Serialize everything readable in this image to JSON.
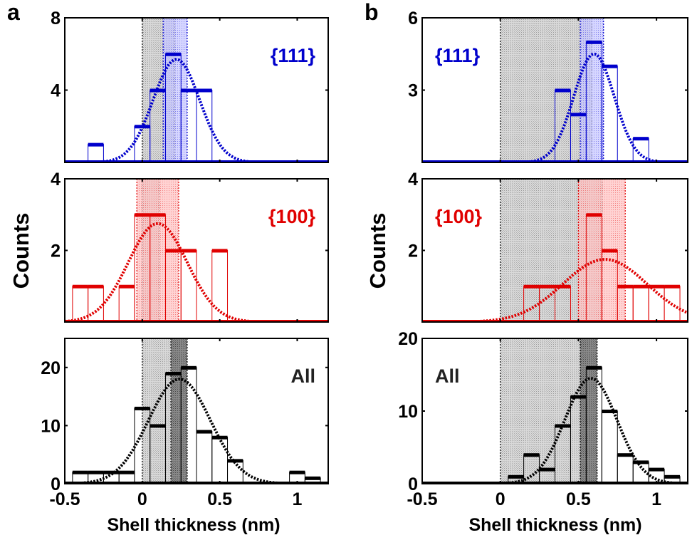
{
  "figure": {
    "ylabel": "Counts",
    "xlabel": "Shell thickness (nm)"
  },
  "colors": {
    "blue": "#0000cc",
    "red": "#e00000",
    "black": "#000000",
    "gray_band": "#bdbdbd",
    "dark_band": "#6e6e6e",
    "blue_band": "#8c8cff",
    "red_band": "#ff8c8c"
  },
  "chart_data": [
    {
      "type": "bar",
      "panel": "a",
      "facet": "{111}",
      "color": "blue",
      "label_position": "top-right",
      "xlim": [
        -0.5,
        1.2
      ],
      "ylim": [
        0,
        8
      ],
      "yticks": [
        4,
        8
      ],
      "xticks": [],
      "bin_width": 0.1,
      "bin_centers": [
        -0.3,
        0.0,
        0.1,
        0.2,
        0.3,
        0.4
      ],
      "values": [
        1,
        2,
        4,
        6,
        4,
        4
      ],
      "fit": {
        "type": "gaussian",
        "amplitude": 5.7,
        "mean": 0.22,
        "sigma": 0.15
      },
      "bands": [
        {
          "kind": "gray",
          "from": 0.0,
          "to": 0.21
        },
        {
          "kind": "blue",
          "from": 0.135,
          "to": 0.29
        }
      ]
    },
    {
      "type": "bar",
      "panel": "a",
      "facet": "{100}",
      "color": "red",
      "label_position": "top-right",
      "xlim": [
        -0.5,
        1.2
      ],
      "ylim": [
        0,
        4
      ],
      "yticks": [
        2,
        4
      ],
      "xticks": [],
      "bin_width": 0.1,
      "bin_centers": [
        -0.4,
        -0.3,
        -0.1,
        0.0,
        0.1,
        0.2,
        0.3,
        0.5
      ],
      "values": [
        1,
        1,
        1,
        3,
        3,
        2,
        2,
        2
      ],
      "fit": {
        "type": "gaussian",
        "amplitude": 2.75,
        "mean": 0.1,
        "sigma": 0.19
      },
      "bands": [
        {
          "kind": "gray",
          "from": 0.0,
          "to": 0.11
        },
        {
          "kind": "red",
          "from": -0.035,
          "to": 0.235
        }
      ]
    },
    {
      "type": "bar",
      "panel": "a",
      "facet": "All",
      "color": "black",
      "label_position": "top-right",
      "xlim": [
        -0.5,
        1.2
      ],
      "ylim": [
        0,
        25
      ],
      "yticks": [
        0,
        10,
        20
      ],
      "xticks": [
        -0.5,
        0,
        0.5,
        1
      ],
      "xtick_labels": [
        "-0.5",
        "0",
        "0.5",
        "1"
      ],
      "bin_width": 0.1,
      "bin_centers": [
        -0.4,
        -0.3,
        -0.2,
        -0.1,
        0.0,
        0.1,
        0.2,
        0.3,
        0.4,
        0.5,
        0.6,
        1.0,
        1.1
      ],
      "values": [
        2,
        2,
        2,
        2,
        13,
        10,
        19,
        20,
        9,
        8,
        4,
        2,
        1
      ],
      "fit": {
        "type": "gaussian",
        "amplitude": 18,
        "mean": 0.24,
        "sigma": 0.2
      },
      "bands": [
        {
          "kind": "gray",
          "from": 0.0,
          "to": 0.245
        },
        {
          "kind": "dark",
          "from": 0.185,
          "to": 0.29
        }
      ]
    },
    {
      "type": "bar",
      "panel": "b",
      "facet": "{111}",
      "color": "blue",
      "label_position": "top-left",
      "xlim": [
        -0.5,
        1.2
      ],
      "ylim": [
        0,
        6
      ],
      "yticks": [
        3,
        6
      ],
      "xticks": [],
      "bin_width": 0.1,
      "bin_centers": [
        0.4,
        0.5,
        0.6,
        0.7,
        0.9
      ],
      "values": [
        3,
        2,
        5,
        4,
        1
      ],
      "fit": {
        "type": "gaussian",
        "amplitude": 4.5,
        "mean": 0.6,
        "sigma": 0.13
      },
      "bands": [
        {
          "kind": "gray",
          "from": 0.0,
          "to": 0.586
        },
        {
          "kind": "blue",
          "from": 0.512,
          "to": 0.661
        }
      ]
    },
    {
      "type": "bar",
      "panel": "b",
      "facet": "{100}",
      "color": "red",
      "label_position": "top-left",
      "xlim": [
        -0.5,
        1.2
      ],
      "ylim": [
        0,
        4
      ],
      "yticks": [
        2,
        4
      ],
      "xticks": [],
      "bin_width": 0.1,
      "bin_centers": [
        0.2,
        0.3,
        0.4,
        0.6,
        0.7,
        0.8,
        0.9,
        1.0,
        1.1
      ],
      "values": [
        1,
        1,
        1,
        3,
        2,
        1,
        1,
        1,
        1
      ],
      "fit": {
        "type": "gaussian",
        "amplitude": 1.75,
        "mean": 0.67,
        "sigma": 0.27
      },
      "bands": [
        {
          "kind": "gray",
          "from": 0.0,
          "to": 0.652
        },
        {
          "kind": "red",
          "from": 0.5,
          "to": 0.8
        }
      ]
    },
    {
      "type": "bar",
      "panel": "b",
      "facet": "All",
      "color": "black",
      "label_position": "top-left",
      "xlim": [
        -0.5,
        1.2
      ],
      "ylim": [
        0,
        20
      ],
      "yticks": [
        0,
        10,
        20
      ],
      "xticks": [
        -0.5,
        0,
        0.5,
        1
      ],
      "xtick_labels": [
        "-0.5",
        "0",
        "0.5",
        "1"
      ],
      "bin_width": 0.1,
      "bin_centers": [
        0.1,
        0.2,
        0.3,
        0.4,
        0.5,
        0.6,
        0.7,
        0.8,
        0.9,
        1.0,
        1.1
      ],
      "values": [
        1,
        4,
        2,
        8,
        12,
        16,
        10,
        4,
        3,
        2,
        1
      ],
      "fit": {
        "type": "gaussian",
        "amplitude": 14.5,
        "mean": 0.58,
        "sigma": 0.167
      },
      "bands": [
        {
          "kind": "gray",
          "from": 0.0,
          "to": 0.573
        },
        {
          "kind": "dark",
          "from": 0.512,
          "to": 0.62
        }
      ]
    }
  ]
}
